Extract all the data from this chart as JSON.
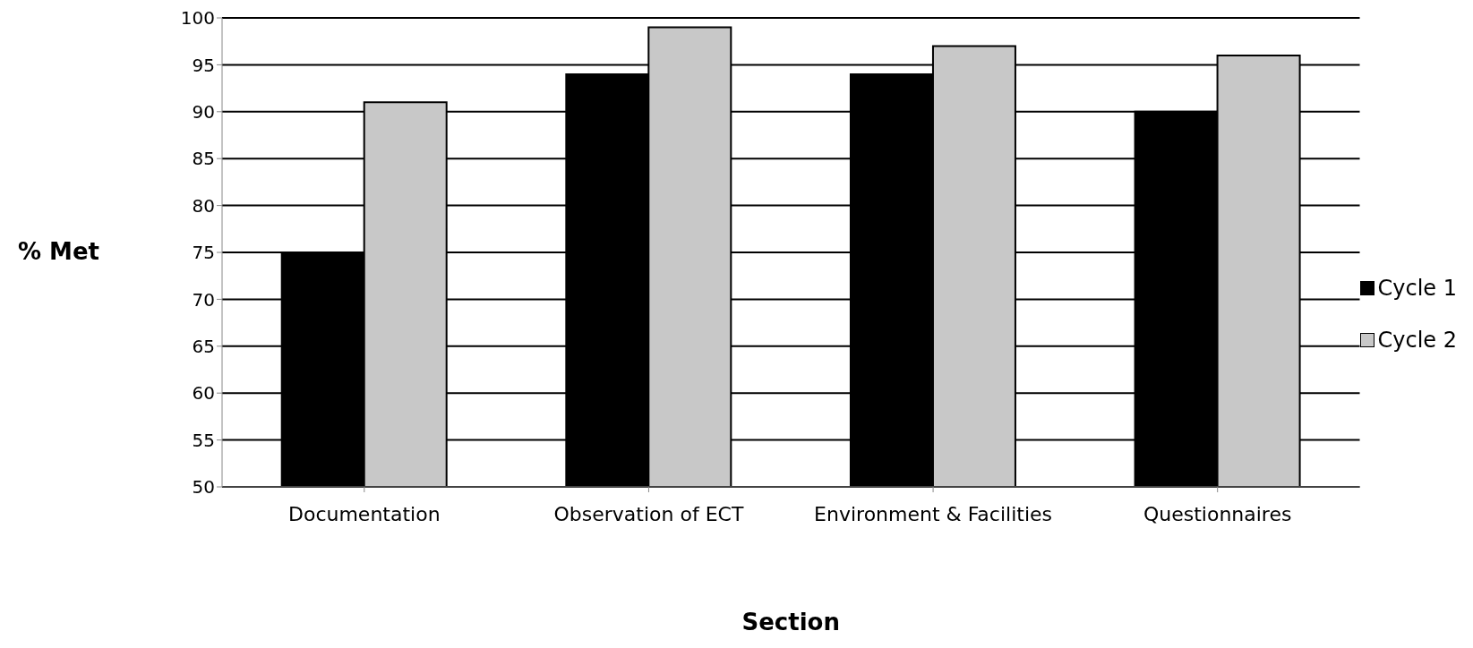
{
  "chart_data": {
    "type": "bar",
    "xlabel": "Section",
    "ylabel": "% Met",
    "categories": [
      "Documentation",
      "Observation of ECT",
      "Environment & Facilities",
      "Questionnaires"
    ],
    "series": [
      {
        "name": "Cycle 1",
        "color": "#000000",
        "values": [
          75,
          94,
          94,
          90
        ]
      },
      {
        "name": "Cycle 2",
        "color": "#c8c8c8",
        "values": [
          91,
          99,
          97,
          96
        ]
      }
    ],
    "ylim": [
      50,
      100
    ],
    "yticks": [
      50,
      55,
      60,
      65,
      70,
      75,
      80,
      85,
      90,
      95,
      100
    ],
    "grid": "y",
    "legend": "right"
  }
}
